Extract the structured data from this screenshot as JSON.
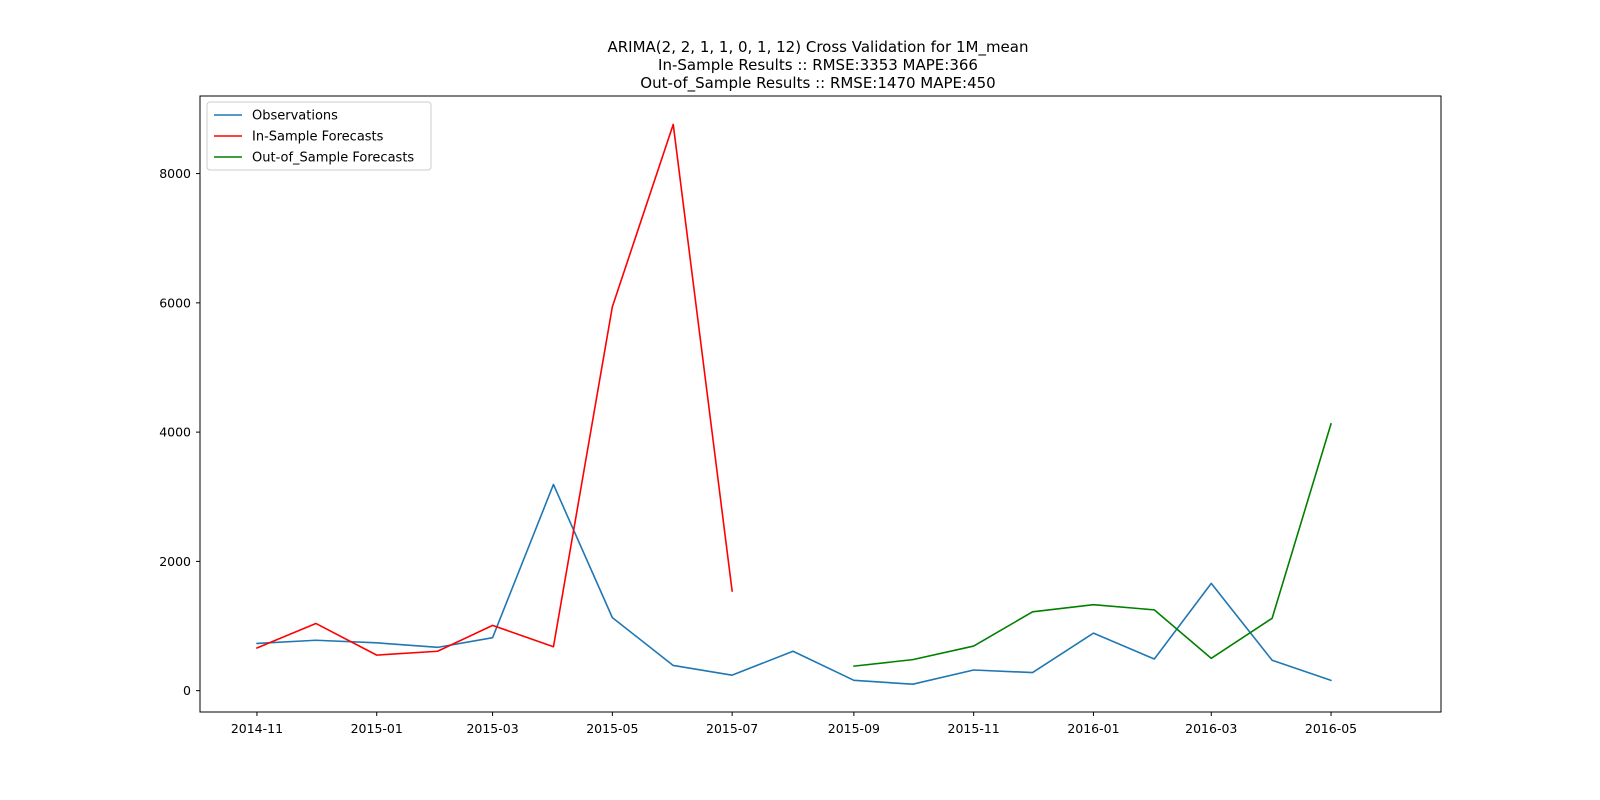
{
  "chart_data": {
    "type": "line",
    "title_lines": [
      "ARIMA(2, 2, 1, 1, 0, 1, 12) Cross Validation for 1M_mean",
      "In-Sample Results :: RMSE:3353 MAPE:366",
      "Out-of_Sample Results :: RMSE:1470 MAPE:450"
    ],
    "xlabel": "",
    "ylabel": "",
    "x_ticks": [
      "2014-11",
      "2015-01",
      "2015-03",
      "2015-05",
      "2015-07",
      "2015-09",
      "2015-11",
      "2016-01",
      "2016-03",
      "2016-05"
    ],
    "y_ticks": [
      0,
      2000,
      4000,
      6000,
      8000
    ],
    "xlim": [
      "2014-10-03",
      "2016-06-26"
    ],
    "ylim": [
      -330,
      9200
    ],
    "grid": false,
    "legend_position": "top-left",
    "series": [
      {
        "name": "Observations",
        "color": "#1f77b4",
        "points": [
          [
            "2014-11-01",
            730
          ],
          [
            "2014-12-01",
            780
          ],
          [
            "2015-01-01",
            740
          ],
          [
            "2015-02-01",
            670
          ],
          [
            "2015-03-01",
            820
          ],
          [
            "2015-04-01",
            3190
          ],
          [
            "2015-05-01",
            1130
          ],
          [
            "2015-06-01",
            390
          ],
          [
            "2015-07-01",
            240
          ],
          [
            "2015-08-01",
            610
          ],
          [
            "2015-09-01",
            160
          ],
          [
            "2015-10-01",
            100
          ],
          [
            "2015-11-01",
            320
          ],
          [
            "2015-12-01",
            280
          ],
          [
            "2016-01-01",
            890
          ],
          [
            "2016-02-01",
            490
          ],
          [
            "2016-03-01",
            1660
          ],
          [
            "2016-04-01",
            470
          ],
          [
            "2016-05-01",
            160
          ]
        ]
      },
      {
        "name": "In-Sample Forecasts",
        "color": "#ff0000",
        "points": [
          [
            "2014-11-01",
            660
          ],
          [
            "2014-12-01",
            1040
          ],
          [
            "2015-01-01",
            550
          ],
          [
            "2015-02-01",
            610
          ],
          [
            "2015-03-01",
            1010
          ],
          [
            "2015-04-01",
            680
          ],
          [
            "2015-05-01",
            5940
          ],
          [
            "2015-06-01",
            8760
          ],
          [
            "2015-07-01",
            1540
          ]
        ]
      },
      {
        "name": "Out-of_Sample Forecasts",
        "color": "#008000",
        "points": [
          [
            "2015-09-01",
            380
          ],
          [
            "2015-10-01",
            480
          ],
          [
            "2015-11-01",
            690
          ],
          [
            "2015-12-01",
            1220
          ],
          [
            "2016-01-01",
            1330
          ],
          [
            "2016-02-01",
            1250
          ],
          [
            "2016-03-01",
            500
          ],
          [
            "2016-04-01",
            1120
          ],
          [
            "2016-05-01",
            4130
          ]
        ]
      }
    ]
  }
}
